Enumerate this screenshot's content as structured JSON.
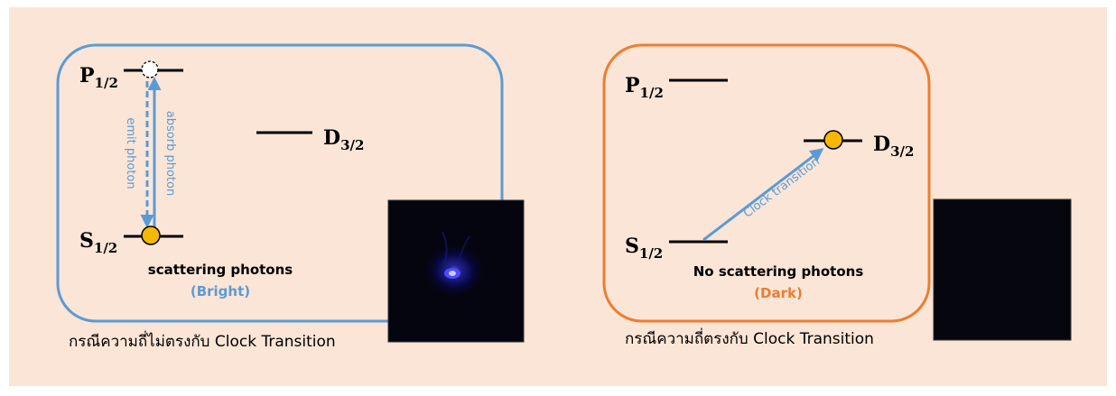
{
  "panels": [
    {
      "levels": {
        "p": {
          "main": "P",
          "sub": "1/2"
        },
        "d": {
          "main": "D",
          "sub": "3/2"
        },
        "s": {
          "main": "S",
          "sub": "1/2"
        }
      },
      "arrow_up_label": "absorb photon",
      "arrow_down_label": "emit photon",
      "status_title": "scattering photons",
      "status_tag": "(Bright)",
      "caption": "กรณีความถี่ไม่ตรงกับ Clock Transition",
      "frame_color": "#5b9bd5",
      "tag_color": "#5b9bd5",
      "camera_image": "bright ion fluorescence spot"
    },
    {
      "levels": {
        "p": {
          "main": "P",
          "sub": "1/2"
        },
        "d": {
          "main": "D",
          "sub": "3/2"
        },
        "s": {
          "main": "S",
          "sub": "1/2"
        }
      },
      "arrow_label": "Clock transition",
      "status_title": "No scattering photons",
      "status_tag": "(Dark)",
      "caption": "กรณีความถี่ตรงกับ Clock Transition",
      "frame_color": "#ed7d31",
      "tag_color": "#ed7d31",
      "camera_image": "dark, no fluorescence"
    }
  ],
  "colors": {
    "background": "#fbe5d6",
    "electron": "#f5b800",
    "arrow": "#5b9bd5"
  }
}
